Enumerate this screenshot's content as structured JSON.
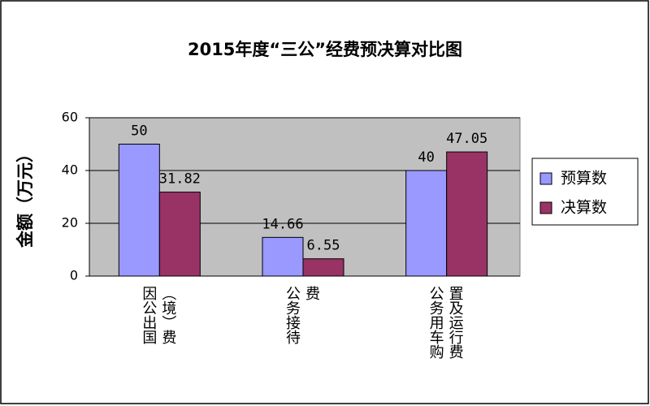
{
  "chart_data": {
    "type": "bar",
    "title": "2015年度“三公”经费预决算对比图",
    "y_label": "金额（万元）",
    "categories": [
      "因公出国（境）费",
      "公务接待费",
      "公务用车购置及运行费"
    ],
    "series": [
      {
        "name": "预算数",
        "color": "#9999ff",
        "values": [
          50,
          14.66,
          40
        ]
      },
      {
        "name": "决算数",
        "color": "#993366",
        "values": [
          31.82,
          6.55,
          47.05
        ]
      }
    ],
    "ylim": [
      0,
      60
    ],
    "yticks": [
      0,
      20,
      40,
      60
    ],
    "grid": true,
    "legend": "right"
  }
}
